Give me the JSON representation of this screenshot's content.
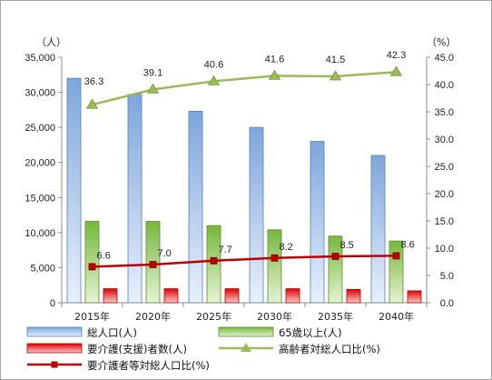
{
  "chart_data": {
    "type": "bar",
    "categories": [
      "2015年",
      "2020年",
      "2025年",
      "2030年",
      "2035年",
      "2040年"
    ],
    "left_axis": {
      "unit": "（人）",
      "ylim": [
        0,
        35000
      ],
      "ticks": [
        "0",
        "5,000",
        "10,000",
        "15,000",
        "20,000",
        "25,000",
        "30,000",
        "35,000"
      ]
    },
    "right_axis": {
      "unit": "（%）",
      "ylim": [
        0,
        45
      ],
      "ticks": [
        "0.0",
        "5.0",
        "10.0",
        "15.0",
        "20.0",
        "25.0",
        "30.0",
        "35.0",
        "40.0",
        "45.0"
      ]
    },
    "grid": false,
    "legend_position": "bottom",
    "series": [
      {
        "name": "総人口(人)",
        "type": "bar",
        "axis": "left",
        "color": "#8eb4e3",
        "values": [
          32000,
          29700,
          27300,
          25000,
          23000,
          21000
        ]
      },
      {
        "name": "65歳以上(人)",
        "type": "bar",
        "axis": "left",
        "color": "#92d050",
        "values": [
          11600,
          11600,
          11000,
          10400,
          9500,
          8800
        ]
      },
      {
        "name": "要介護(支援)者数(人)",
        "type": "bar",
        "axis": "left",
        "color": "#e81c1c",
        "values": [
          2000,
          2000,
          2000,
          2000,
          1900,
          1700
        ]
      },
      {
        "name": "高齢者対総人口比(%)",
        "type": "line",
        "axis": "right",
        "color": "#9bbb59",
        "marker": "triangle",
        "values": [
          36.3,
          39.1,
          40.6,
          41.6,
          41.5,
          42.3
        ],
        "labels": [
          "36.3",
          "39.1",
          "40.6",
          "41.6",
          "41.5",
          "42.3"
        ]
      },
      {
        "name": "要介護者等対総人口比(%)",
        "type": "line",
        "axis": "right",
        "color": "#c00000",
        "marker": "square",
        "values": [
          6.6,
          7.0,
          7.7,
          8.2,
          8.5,
          8.6
        ],
        "labels": [
          "6.6",
          "7.0",
          "7.7",
          "8.2",
          "8.5",
          "8.6"
        ]
      }
    ]
  }
}
